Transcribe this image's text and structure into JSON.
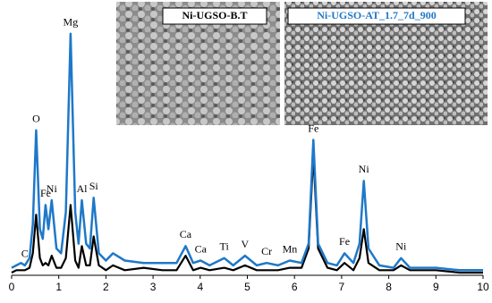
{
  "chart_data": {
    "type": "line",
    "insets": [
      {
        "label": "Ni-UGSO-B.T"
      },
      {
        "label": "Ni-UGSO-AT_1.7_7d_900"
      }
    ],
    "x": [
      0,
      0.1,
      0.2,
      0.28,
      0.38,
      0.45,
      0.52,
      0.6,
      0.66,
      0.72,
      0.78,
      0.85,
      0.95,
      1.05,
      1.15,
      1.25,
      1.35,
      1.42,
      1.49,
      1.58,
      1.66,
      1.74,
      1.85,
      2.0,
      2.15,
      2.4,
      2.8,
      3.2,
      3.5,
      3.69,
      3.85,
      4.01,
      4.2,
      4.51,
      4.7,
      4.95,
      5.2,
      5.41,
      5.65,
      5.9,
      6.15,
      6.3,
      6.4,
      6.5,
      6.7,
      6.9,
      7.06,
      7.25,
      7.38,
      7.47,
      7.57,
      7.8,
      8.1,
      8.26,
      8.45,
      9,
      9.5,
      10
    ],
    "series": [
      {
        "color": "#1f78c8",
        "values": [
          2,
          3,
          4,
          3,
          6,
          20,
          59,
          18,
          14,
          28,
          18,
          30,
          10,
          8,
          25,
          99,
          25,
          12,
          30,
          12,
          10,
          31,
          8,
          5,
          8,
          5,
          4,
          4,
          4,
          11,
          4,
          5,
          3,
          6,
          3,
          7,
          3,
          4,
          3,
          5,
          4,
          12,
          55,
          12,
          4,
          3,
          8,
          4,
          12,
          38,
          10,
          3,
          2,
          6,
          2,
          2,
          1,
          1
        ]
      },
      {
        "color": "#000000",
        "values": [
          0,
          1,
          1,
          1,
          2,
          8,
          24,
          6,
          3,
          4,
          3,
          7,
          2,
          2,
          6,
          28,
          5,
          2,
          11,
          3,
          3,
          15,
          3,
          1,
          3,
          1,
          2,
          1,
          1,
          7,
          1,
          2,
          1,
          2,
          1,
          3,
          1,
          1,
          1,
          2,
          2,
          10,
          49,
          10,
          2,
          1,
          4,
          1,
          6,
          18,
          4,
          1,
          1,
          3,
          1,
          1,
          0,
          0
        ]
      }
    ],
    "annotations": [
      {
        "text": "C",
        "x": 0.28
      },
      {
        "text": "O",
        "x": 0.52
      },
      {
        "text": "Fe",
        "x": 0.72
      },
      {
        "text": "Ni",
        "x": 0.85
      },
      {
        "text": "Mg",
        "x": 1.25
      },
      {
        "text": "Al",
        "x": 1.49
      },
      {
        "text": "Si",
        "x": 1.74
      },
      {
        "text": "Ca",
        "x": 3.69
      },
      {
        "text": "Ca",
        "x": 4.01
      },
      {
        "text": "Ti",
        "x": 4.51
      },
      {
        "text": "V",
        "x": 4.95
      },
      {
        "text": "Cr",
        "x": 5.41
      },
      {
        "text": "Mn",
        "x": 5.9
      },
      {
        "text": "Fe",
        "x": 6.4
      },
      {
        "text": "Fe",
        "x": 7.06
      },
      {
        "text": "Ni",
        "x": 7.47
      },
      {
        "text": "Ni",
        "x": 8.26
      }
    ],
    "xlim": [
      0,
      10
    ],
    "xticks": [
      0,
      1,
      2,
      3,
      4,
      5,
      6,
      7,
      8,
      9,
      10
    ],
    "ylim": [
      0,
      100
    ]
  }
}
